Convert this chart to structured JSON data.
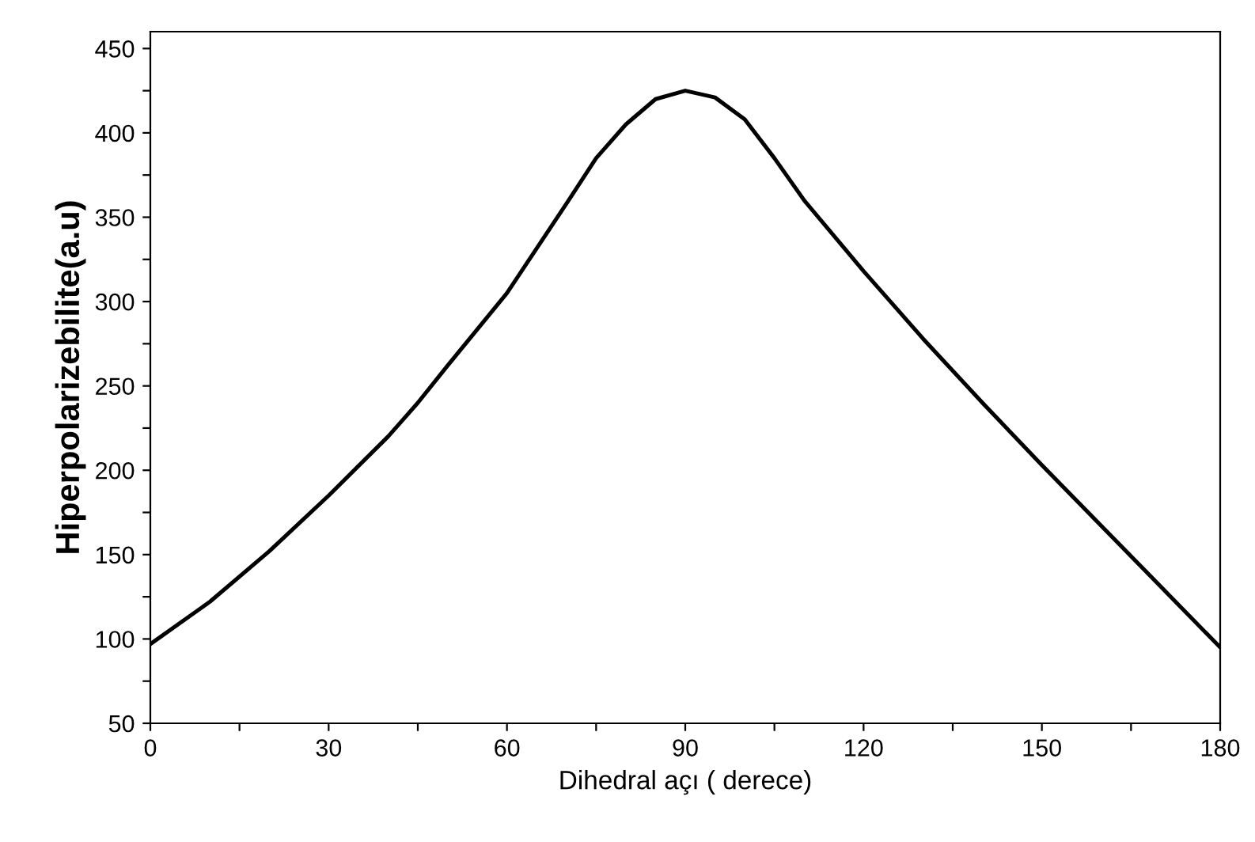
{
  "chart_data": {
    "type": "line",
    "xlabel": "Dihedral açı ( derece)",
    "ylabel": "Hiperpolarizebilite(a.u)",
    "x": [
      0,
      10,
      20,
      30,
      40,
      45,
      50,
      60,
      70,
      75,
      80,
      85,
      90,
      95,
      100,
      105,
      110,
      120,
      130,
      140,
      150,
      160,
      170,
      180
    ],
    "series": [
      {
        "color": "#000000",
        "values": [
          97,
          122,
          152,
          185,
          220,
          240,
          262,
          305,
          358,
          385,
          405,
          420,
          425,
          421,
          408,
          385,
          360,
          318,
          278,
          240,
          203,
          167,
          131,
          95
        ]
      }
    ],
    "xlim": [
      0,
      180
    ],
    "ylim": [
      50,
      460
    ],
    "xticks": [
      0,
      {
        "value": 15,
        "label": null
      },
      30,
      {
        "value": 45,
        "label": null
      },
      60,
      {
        "value": 75,
        "label": null
      },
      90,
      {
        "value": 105,
        "label": null
      },
      120,
      {
        "value": 135,
        "label": null
      },
      150,
      {
        "value": 165,
        "label": null
      },
      180
    ],
    "yticks": [
      50,
      {
        "value": 75,
        "label": null
      },
      100,
      {
        "value": 125,
        "label": null
      },
      150,
      {
        "value": 175,
        "label": null
      },
      200,
      {
        "value": 225,
        "label": null
      },
      250,
      {
        "value": 275,
        "label": null
      },
      300,
      {
        "value": 325,
        "label": null
      },
      350,
      {
        "value": 375,
        "label": null
      },
      400,
      {
        "value": 425,
        "label": null
      },
      450
    ],
    "grid": false,
    "marker": "none",
    "line_style": "solid",
    "legend": false
  }
}
